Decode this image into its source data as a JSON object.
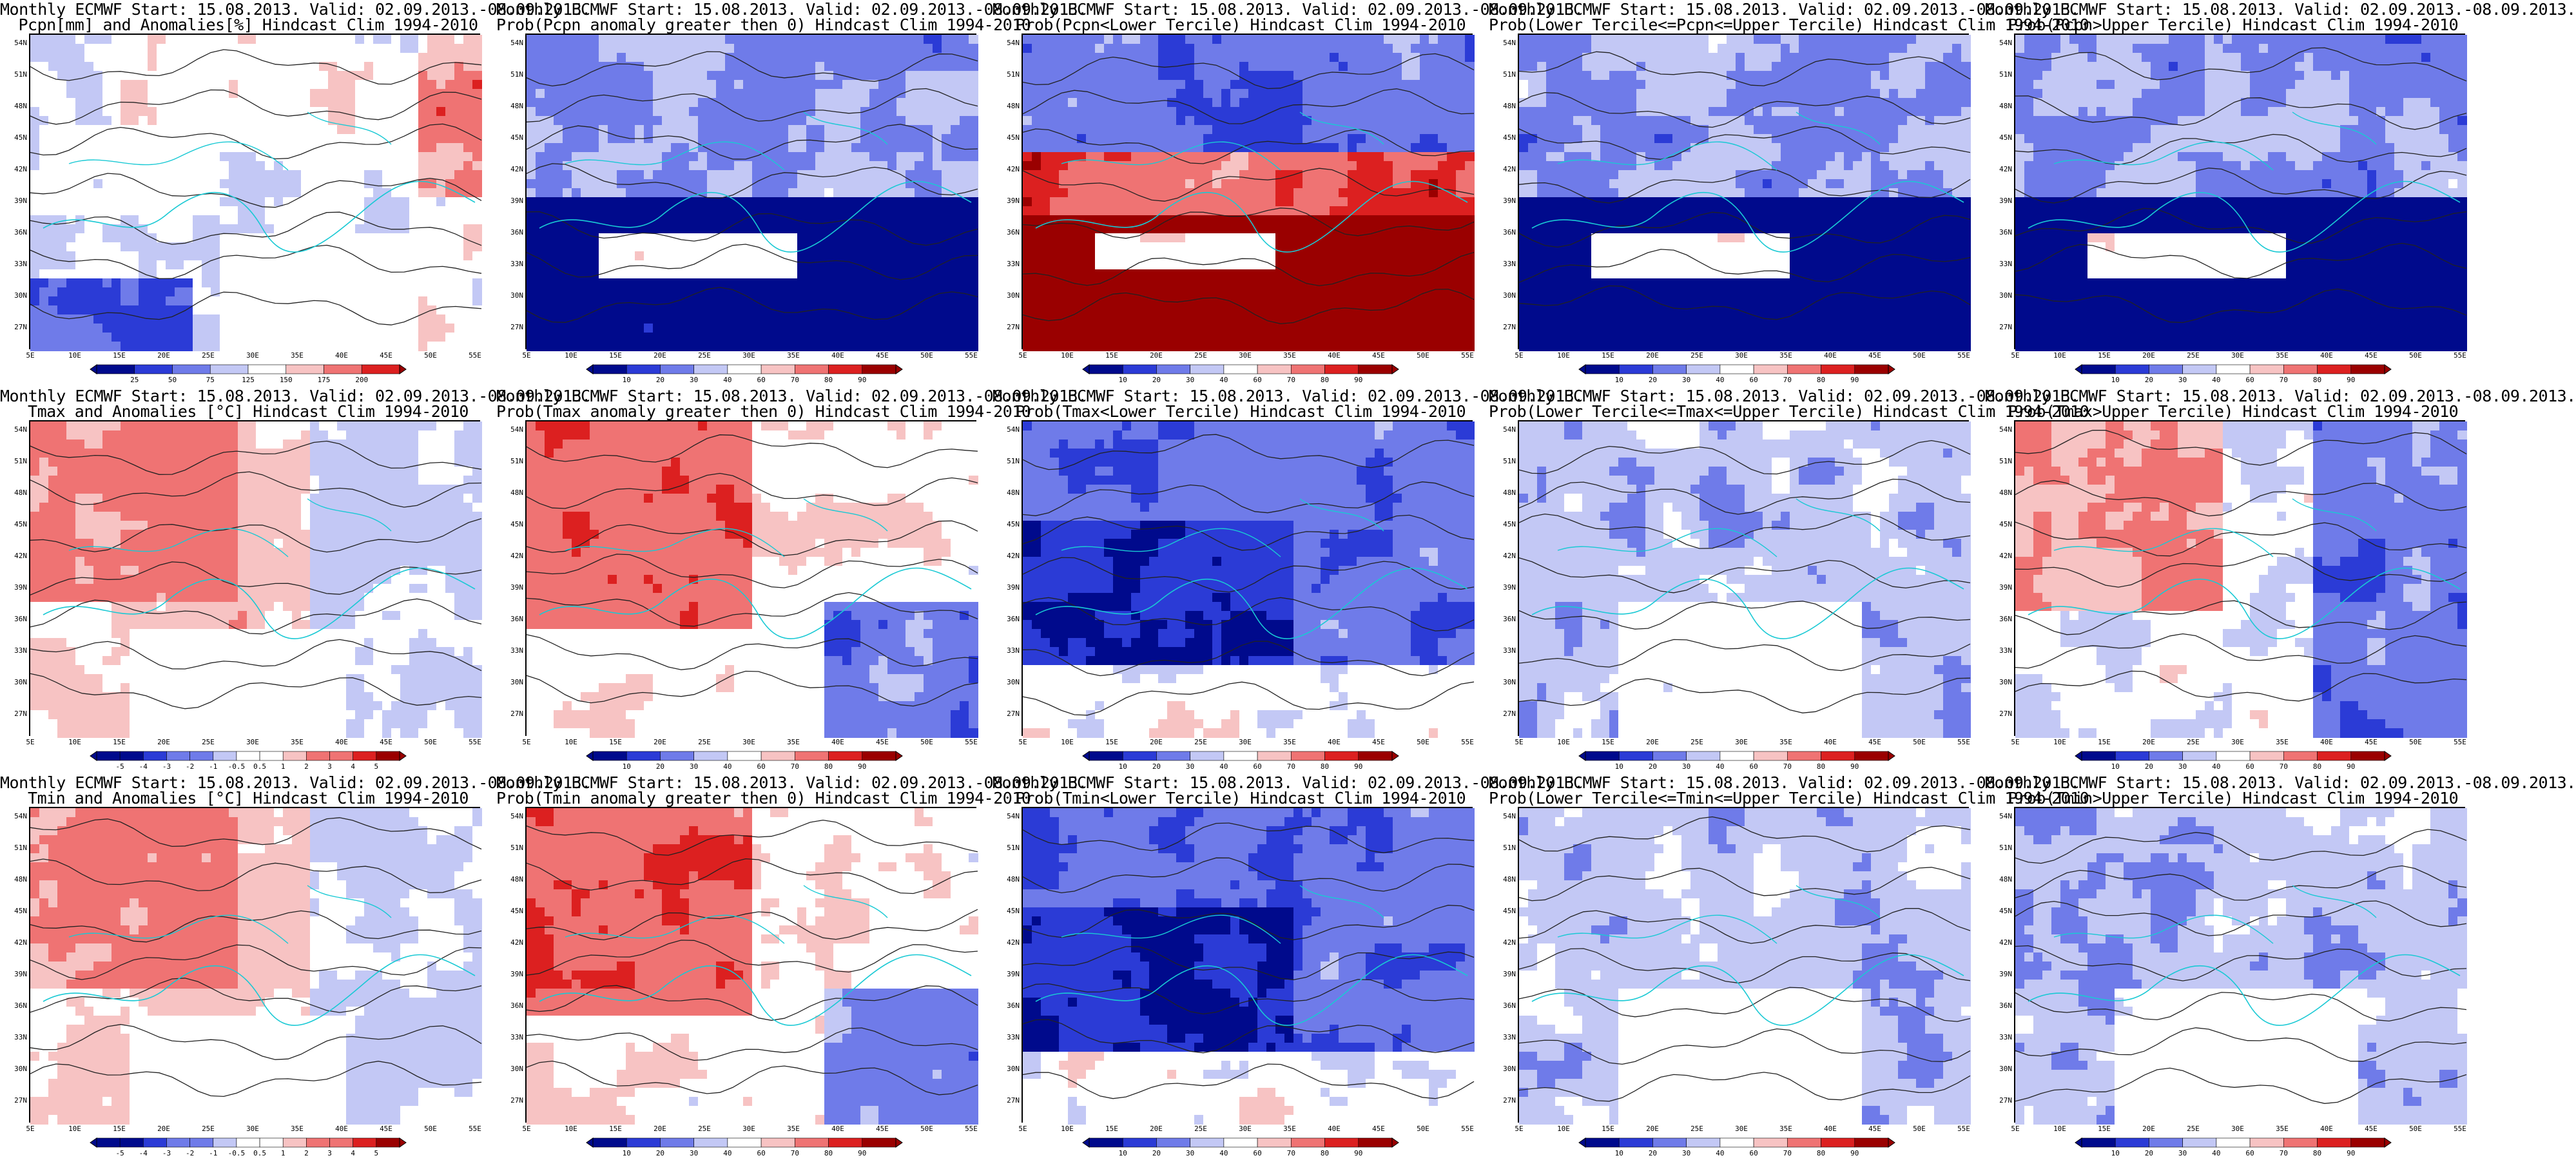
{
  "header": "Monthly ECMWF Start: 15.08.2013. Valid: 02.09.2013.-08.09.2013.",
  "lat_labels": [
    "54N",
    "51N",
    "48N",
    "45N",
    "42N",
    "39N",
    "36N",
    "33N",
    "30N",
    "27N"
  ],
  "lon_labels": [
    "5E",
    "10E",
    "15E",
    "20E",
    "25E",
    "30E",
    "35E",
    "40E",
    "45E",
    "50E",
    "55E"
  ],
  "colors": {
    "dark_blue": "#000a8c",
    "blue": "#2b3bd6",
    "mid_blue": "#6f7be9",
    "light_blue": "#c3c8f5",
    "white": "#ffffff",
    "light_red": "#f7c3c3",
    "mid_red": "#ef7373",
    "red": "#dc2020",
    "dark_red": "#9a0000",
    "coast": "#19c9d4",
    "contour": "#222222"
  },
  "panels": [
    {
      "title_line1": "Monthly ECMWF Start: 15.08.2013. Valid: 02.09.2013.-08.09.2013.",
      "title_line2": "Pcpn[mm] and Anomalies[%] Hindcast Clim 1994-2010",
      "scale": "anom",
      "legend": [
        "25",
        "50",
        "75",
        "125",
        "150",
        "175",
        "200"
      ]
    },
    {
      "title_line1": "Monthly ECMWF Start: 15.08.2013. Valid: 02.09.2013.-08.09.2013.",
      "title_line2": "Prob(Pcpn anomaly greater then 0) Hindcast Clim 1994-2010",
      "scale": "prob_dry",
      "legend": [
        "10",
        "20",
        "30",
        "40",
        "60",
        "70",
        "80",
        "90"
      ]
    },
    {
      "title_line1": "Monthly ECMWF Start: 15.08.2013. Valid: 02.09.2013.-08.09.2013.",
      "title_line2": "Prob(Pcpn<Lower Tercile) Hindcast Clim 1994-2010",
      "scale": "prob_low",
      "legend": [
        "10",
        "20",
        "30",
        "40",
        "60",
        "70",
        "80",
        "90"
      ]
    },
    {
      "title_line1": "Monthly ECMWF Start: 15.08.2013. Valid: 02.09.2013.-08.09.2013.",
      "title_line2": "Prob(Lower Tercile<=Pcpn<=Upper Tercile) Hindcast Clim 1994-2010",
      "scale": "prob_dry",
      "legend": [
        "10",
        "20",
        "30",
        "40",
        "60",
        "70",
        "80",
        "90"
      ]
    },
    {
      "title_line1": "Monthly ECMWF Start: 15.08.2013. Valid: 02.09.2013.-08.09.2013.",
      "title_line2": "Prob(Pcpn>Upper Tercile) Hindcast Clim 1994-2010",
      "scale": "prob_dry",
      "legend": [
        "10",
        "20",
        "30",
        "40",
        "60",
        "70",
        "80",
        "90"
      ]
    },
    {
      "title_line1": "Monthly ECMWF Start: 15.08.2013. Valid: 02.09.2013.-08.09.2013.",
      "title_line2": "Tmax and Anomalies [°C] Hindcast Clim 1994-2010",
      "scale": "warm_anom",
      "legend": [
        "-5",
        "-4",
        "-3",
        "-2",
        "-1",
        "-0.5",
        "0.5",
        "1",
        "2",
        "3",
        "4",
        "5"
      ]
    },
    {
      "title_line1": "Monthly ECMWF Start: 15.08.2013. Valid: 02.09.2013.-08.09.2013.",
      "title_line2": "Prob(Tmax anomaly greater then 0) Hindcast Clim 1994-2010",
      "scale": "warm_prob",
      "legend": [
        "10",
        "20",
        "30",
        "40",
        "60",
        "70",
        "80",
        "90"
      ]
    },
    {
      "title_line1": "Monthly ECMWF Start: 15.08.2013. Valid: 02.09.2013.-08.09.2013.",
      "title_line2": "Prob(Tmax<Lower Tercile) Hindcast Clim 1994-2010",
      "scale": "cold_prob",
      "legend": [
        "10",
        "20",
        "30",
        "40",
        "60",
        "70",
        "80",
        "90"
      ]
    },
    {
      "title_line1": "Monthly ECMWF Start: 15.08.2013. Valid: 02.09.2013.-08.09.2013.",
      "title_line2": "Prob(Lower Tercile<=Tmax<=Upper Tercile) Hindcast Clim 1994-2010",
      "scale": "mixed_blue",
      "legend": [
        "10",
        "20",
        "30",
        "40",
        "60",
        "70",
        "80",
        "90"
      ]
    },
    {
      "title_line1": "Monthly ECMWF Start: 15.08.2013. Valid: 02.09.2013.-08.09.2013.",
      "title_line2": "Prob(Tmax>Upper Tercile) Hindcast Clim 1994-2010",
      "scale": "mixed_warm",
      "legend": [
        "10",
        "20",
        "30",
        "40",
        "60",
        "70",
        "80",
        "90"
      ]
    },
    {
      "title_line1": "Monthly ECMWF Start: 15.08.2013. Valid: 02.09.2013.-08.09.2013.",
      "title_line2": "Tmin and Anomalies [°C] Hindcast Clim 1994-2010",
      "scale": "warm_anom",
      "legend": [
        "-5",
        "-4",
        "-3",
        "-2",
        "-1",
        "-0.5",
        "0.5",
        "1",
        "2",
        "3",
        "4",
        "5"
      ]
    },
    {
      "title_line1": "Monthly ECMWF Start: 15.08.2013. Valid: 02.09.2013.-08.09.2013.",
      "title_line2": "Prob(Tmin anomaly greater then 0) Hindcast Clim 1994-2010",
      "scale": "warm_prob",
      "legend": [
        "10",
        "20",
        "30",
        "40",
        "60",
        "70",
        "80",
        "90"
      ]
    },
    {
      "title_line1": "Monthly ECMWF Start: 15.08.2013. Valid: 02.09.2013.-08.09.2013.",
      "title_line2": "Prob(Tmin<Lower Tercile) Hindcast Clim 1994-2010",
      "scale": "cold_prob",
      "legend": [
        "10",
        "20",
        "30",
        "40",
        "60",
        "70",
        "80",
        "90"
      ]
    },
    {
      "title_line1": "Monthly ECMWF Start: 15.08.2013. Valid: 02.09.2013.-08.09.2013.",
      "title_line2": "Prob(Lower Tercile<=Tmin<=Upper Tercile) Hindcast Clim 1994-2010",
      "scale": "mixed_blue",
      "legend": [
        "10",
        "20",
        "30",
        "40",
        "60",
        "70",
        "80",
        "90"
      ]
    },
    {
      "title_line1": "Monthly ECMWF Start: 15.08.2013. Valid: 02.09.2013.-08.09.2013.",
      "title_line2": "Prob(Tmin>Upper Tercile) Hindcast Clim 1994-2010",
      "scale": "mixed_blue",
      "legend": [
        "10",
        "20",
        "30",
        "40",
        "60",
        "70",
        "80",
        "90"
      ]
    }
  ]
}
